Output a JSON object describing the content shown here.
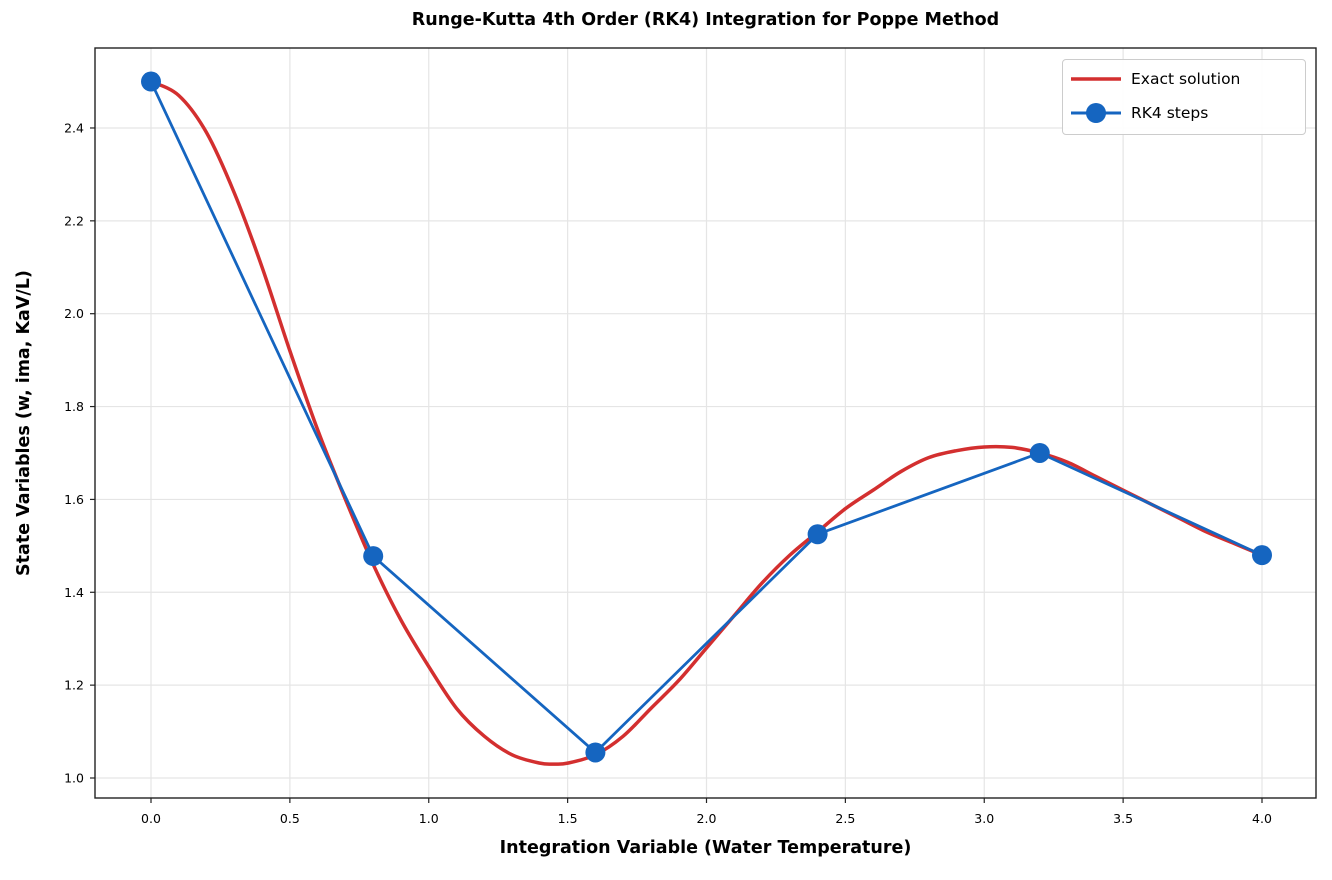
{
  "chart_data": {
    "type": "line",
    "title": "Runge-Kutta 4th Order (RK4) Integration for Poppe Method",
    "xlabel": "Integration Variable (Water Temperature)",
    "ylabel": "State Variables (w, ima, KaV/L)",
    "xlim": [
      -0.2,
      4.2
    ],
    "ylim": [
      0.957,
      2.566
    ],
    "xticks": [
      0.0,
      0.5,
      1.0,
      1.5,
      2.0,
      2.5,
      3.0,
      3.5,
      4.0
    ],
    "xtick_labels": [
      "0.0",
      "0.5",
      "1.0",
      "1.5",
      "2.0",
      "2.5",
      "3.0",
      "3.5",
      "4.0"
    ],
    "yticks": [
      1.0,
      1.2,
      1.4,
      1.6,
      1.8,
      2.0,
      2.2,
      2.4
    ],
    "ytick_labels": [
      "1.0",
      "1.2",
      "1.4",
      "1.6",
      "1.8",
      "2.0",
      "2.2",
      "2.4"
    ],
    "grid": true,
    "legend_position": "upper right",
    "series": [
      {
        "name": "Exact solution",
        "color": "#d32f2f",
        "style": "line",
        "x": [
          0.0,
          0.1,
          0.2,
          0.3,
          0.4,
          0.5,
          0.6,
          0.7,
          0.8,
          0.9,
          1.0,
          1.1,
          1.2,
          1.3,
          1.4,
          1.45,
          1.5,
          1.6,
          1.7,
          1.8,
          1.9,
          2.0,
          2.1,
          2.2,
          2.3,
          2.4,
          2.5,
          2.6,
          2.7,
          2.8,
          2.9,
          3.0,
          3.1,
          3.2,
          3.3,
          3.4,
          3.5,
          3.6,
          3.7,
          3.8,
          3.9,
          4.0
        ],
        "y": [
          2.5,
          2.47,
          2.39,
          2.26,
          2.1,
          1.92,
          1.75,
          1.6,
          1.46,
          1.34,
          1.24,
          1.15,
          1.09,
          1.05,
          1.032,
          1.03,
          1.032,
          1.05,
          1.09,
          1.15,
          1.21,
          1.28,
          1.35,
          1.42,
          1.48,
          1.53,
          1.58,
          1.62,
          1.66,
          1.69,
          1.705,
          1.713,
          1.712,
          1.7,
          1.68,
          1.65,
          1.62,
          1.59,
          1.56,
          1.53,
          1.505,
          1.48
        ]
      },
      {
        "name": "RK4 steps",
        "color": "#1565c0",
        "style": "line+marker",
        "x": [
          0.0,
          0.8,
          1.6,
          2.4,
          3.2,
          4.0
        ],
        "y": [
          2.5,
          1.478,
          1.055,
          1.525,
          1.7,
          1.48
        ]
      }
    ]
  }
}
